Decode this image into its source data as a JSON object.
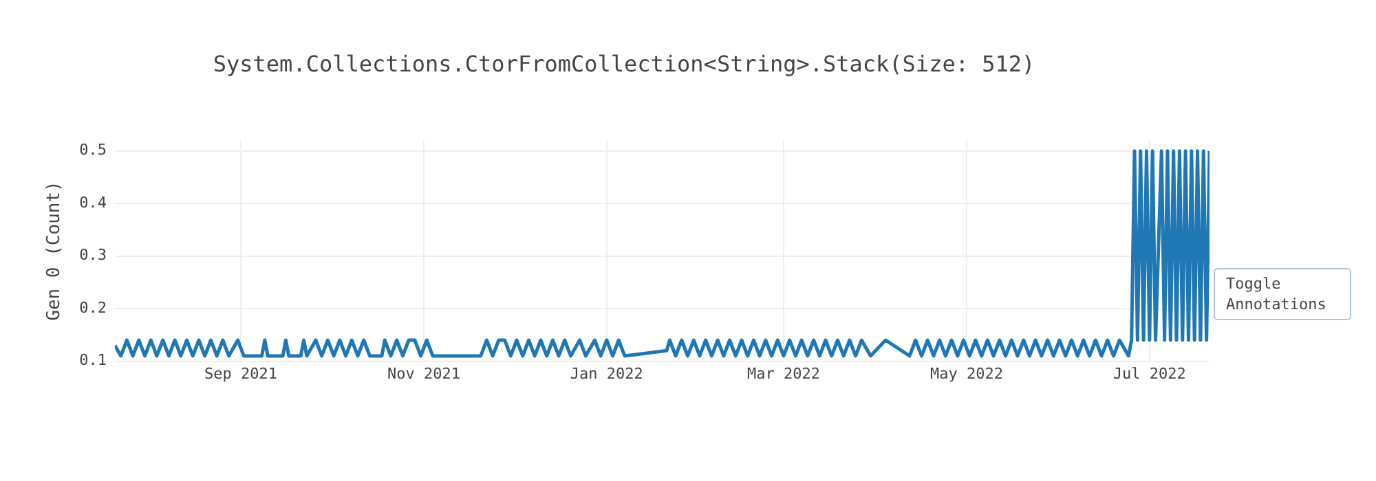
{
  "chart_data": {
    "type": "line",
    "title": "System.Collections.CtorFromCollection<String>.Stack(Size: 512)",
    "ylabel": "Gen 0 (Count)",
    "color": "#1f77b4",
    "grid": true,
    "legend": false,
    "marker": "none",
    "line_style": "solid",
    "xlim": [
      "2021-07-21",
      "2022-07-21"
    ],
    "xticks": [
      {
        "value": "2021-09-01",
        "label": "Sep 2021"
      },
      {
        "value": "2021-11-01",
        "label": "Nov 2021"
      },
      {
        "value": "2022-01-01",
        "label": "Jan 2022"
      },
      {
        "value": "2022-03-01",
        "label": "Mar 2022"
      },
      {
        "value": "2022-05-01",
        "label": "May 2022"
      },
      {
        "value": "2022-07-01",
        "label": "Jul 2022"
      }
    ],
    "ylim": [
      0.1,
      0.52
    ],
    "yticks": [
      0.1,
      0.2,
      0.3,
      0.4,
      0.5
    ],
    "annotations": [
      "Toggle Annotations"
    ],
    "x": [
      "2021-07-21",
      "2021-07-23",
      "2021-07-25",
      "2021-07-27",
      "2021-07-29",
      "2021-07-31",
      "2021-08-02",
      "2021-08-04",
      "2021-08-06",
      "2021-08-08",
      "2021-08-10",
      "2021-08-12",
      "2021-08-14",
      "2021-08-16",
      "2021-08-18",
      "2021-08-20",
      "2021-08-22",
      "2021-08-24",
      "2021-08-26",
      "2021-08-28",
      "2021-08-31",
      "2021-09-02",
      "2021-09-08",
      "2021-09-09",
      "2021-09-10",
      "2021-09-15",
      "2021-09-16",
      "2021-09-17",
      "2021-09-21",
      "2021-09-22",
      "2021-09-23",
      "2021-09-26",
      "2021-09-28",
      "2021-09-30",
      "2021-10-02",
      "2021-10-04",
      "2021-10-06",
      "2021-10-08",
      "2021-10-10",
      "2021-10-12",
      "2021-10-14",
      "2021-10-18",
      "2021-10-19",
      "2021-10-21",
      "2021-10-23",
      "2021-10-25",
      "2021-10-27",
      "2021-10-29",
      "2021-10-31",
      "2021-11-02",
      "2021-11-04",
      "2021-11-20",
      "2021-11-22",
      "2021-11-24",
      "2021-11-26",
      "2021-11-28",
      "2021-11-30",
      "2021-12-02",
      "2021-12-04",
      "2021-12-06",
      "2021-12-08",
      "2021-12-10",
      "2021-12-12",
      "2021-12-14",
      "2021-12-16",
      "2021-12-18",
      "2021-12-20",
      "2021-12-23",
      "2021-12-25",
      "2021-12-28",
      "2021-12-30",
      "2022-01-01",
      "2022-01-03",
      "2022-01-05",
      "2022-01-07",
      "2022-01-21",
      "2022-01-22",
      "2022-01-24",
      "2022-01-26",
      "2022-01-28",
      "2022-01-30",
      "2022-02-01",
      "2022-02-03",
      "2022-02-05",
      "2022-02-07",
      "2022-02-09",
      "2022-02-11",
      "2022-02-13",
      "2022-02-15",
      "2022-02-17",
      "2022-02-19",
      "2022-02-21",
      "2022-02-23",
      "2022-02-25",
      "2022-02-27",
      "2022-03-01",
      "2022-03-03",
      "2022-03-05",
      "2022-03-07",
      "2022-03-09",
      "2022-03-11",
      "2022-03-13",
      "2022-03-15",
      "2022-03-17",
      "2022-03-19",
      "2022-03-21",
      "2022-03-23",
      "2022-03-25",
      "2022-03-27",
      "2022-03-30",
      "2022-04-04",
      "2022-04-12",
      "2022-04-14",
      "2022-04-16",
      "2022-04-18",
      "2022-04-20",
      "2022-04-22",
      "2022-04-24",
      "2022-04-26",
      "2022-04-28",
      "2022-04-30",
      "2022-05-02",
      "2022-05-04",
      "2022-05-06",
      "2022-05-08",
      "2022-05-10",
      "2022-05-12",
      "2022-05-14",
      "2022-05-16",
      "2022-05-18",
      "2022-05-20",
      "2022-05-22",
      "2022-05-24",
      "2022-05-26",
      "2022-05-28",
      "2022-05-30",
      "2022-06-01",
      "2022-06-03",
      "2022-06-05",
      "2022-06-07",
      "2022-06-09",
      "2022-06-11",
      "2022-06-13",
      "2022-06-15",
      "2022-06-17",
      "2022-06-19",
      "2022-06-21",
      "2022-06-24",
      "2022-06-25",
      "2022-06-26",
      "2022-06-27",
      "2022-06-28",
      "2022-06-29",
      "2022-06-30",
      "2022-07-01",
      "2022-07-02",
      "2022-07-03",
      "2022-07-05",
      "2022-07-06",
      "2022-07-07",
      "2022-07-08",
      "2022-07-09",
      "2022-07-10",
      "2022-07-11",
      "2022-07-12",
      "2022-07-13",
      "2022-07-14",
      "2022-07-15",
      "2022-07-16",
      "2022-07-17",
      "2022-07-18",
      "2022-07-19",
      "2022-07-20",
      "2022-07-21"
    ],
    "values": [
      0.13,
      0.11,
      0.14,
      0.11,
      0.14,
      0.11,
      0.14,
      0.11,
      0.14,
      0.11,
      0.14,
      0.11,
      0.14,
      0.11,
      0.14,
      0.11,
      0.14,
      0.11,
      0.14,
      0.11,
      0.14,
      0.11,
      0.11,
      0.14,
      0.11,
      0.11,
      0.14,
      0.11,
      0.11,
      0.14,
      0.11,
      0.14,
      0.11,
      0.14,
      0.11,
      0.14,
      0.11,
      0.14,
      0.11,
      0.14,
      0.11,
      0.11,
      0.14,
      0.11,
      0.14,
      0.11,
      0.14,
      0.14,
      0.11,
      0.14,
      0.11,
      0.11,
      0.14,
      0.11,
      0.14,
      0.14,
      0.11,
      0.14,
      0.11,
      0.14,
      0.11,
      0.14,
      0.11,
      0.14,
      0.11,
      0.14,
      0.11,
      0.14,
      0.11,
      0.14,
      0.11,
      0.14,
      0.11,
      0.14,
      0.11,
      0.12,
      0.14,
      0.11,
      0.14,
      0.11,
      0.14,
      0.11,
      0.14,
      0.11,
      0.14,
      0.11,
      0.14,
      0.11,
      0.14,
      0.11,
      0.14,
      0.11,
      0.14,
      0.11,
      0.14,
      0.11,
      0.14,
      0.11,
      0.14,
      0.11,
      0.14,
      0.11,
      0.14,
      0.11,
      0.14,
      0.11,
      0.14,
      0.11,
      0.14,
      0.11,
      0.14,
      0.11,
      0.14,
      0.11,
      0.14,
      0.11,
      0.14,
      0.11,
      0.14,
      0.11,
      0.14,
      0.11,
      0.14,
      0.11,
      0.14,
      0.11,
      0.14,
      0.11,
      0.14,
      0.11,
      0.14,
      0.11,
      0.14,
      0.11,
      0.14,
      0.11,
      0.14,
      0.11,
      0.14,
      0.11,
      0.14,
      0.11,
      0.14,
      0.11,
      0.14,
      0.11,
      0.14,
      0.11,
      0.14,
      0.5,
      0.14,
      0.5,
      0.14,
      0.5,
      0.14,
      0.5,
      0.14,
      0.5,
      0.14,
      0.5,
      0.14,
      0.5,
      0.14,
      0.5,
      0.14,
      0.5,
      0.14,
      0.5,
      0.14,
      0.5,
      0.14,
      0.5,
      0.14,
      0.5
    ]
  }
}
